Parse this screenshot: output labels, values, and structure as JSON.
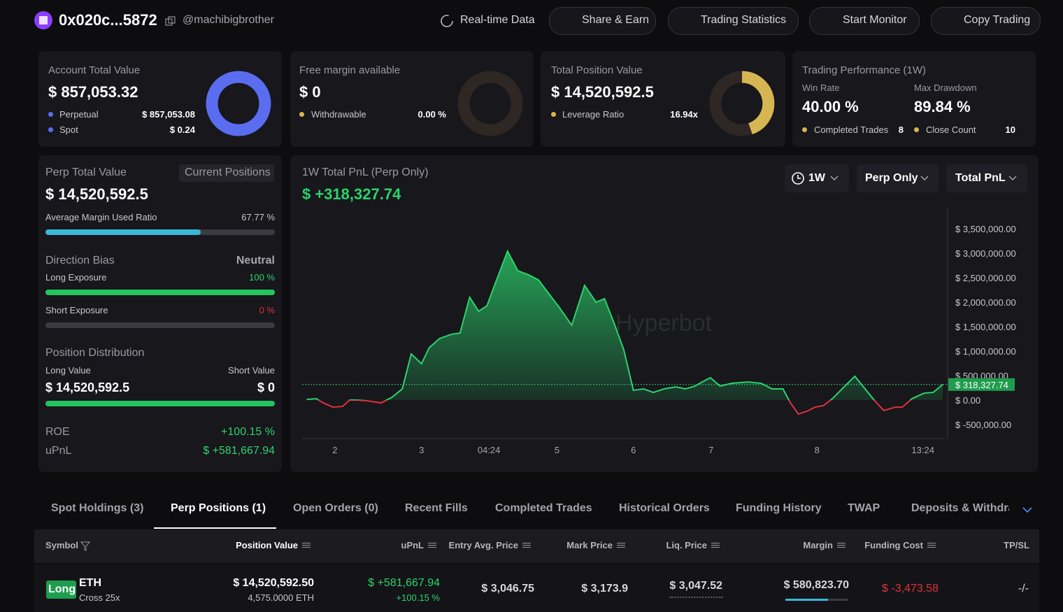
{
  "header": {
    "address": "0x020c...5872",
    "handle": "@machibigbrother",
    "buttons": [
      "Real-time Data",
      "Share & Earn",
      "Trading Statistics",
      "Start Monitor",
      "Copy Trading"
    ]
  },
  "account": {
    "title": "Account Total Value",
    "value": "$ 857,053.32",
    "perpetual_label": "Perpetual",
    "perpetual": {
      "value": 857053.08,
      "label": "$ 857,053.08"
    },
    "spot_label": "Spot",
    "spot": {
      "value": 0.24,
      "label": "$ 0.24"
    }
  },
  "free_margin": {
    "title": "Free margin available",
    "value": "$ 0",
    "withdrawable_label": "Withdrawable",
    "withdrawable": "0.00 %"
  },
  "position_value": {
    "title": "Total Position Value",
    "value": "$ 14,520,592.5",
    "leverage_label": "Leverage Ratio",
    "leverage": "16.94x"
  },
  "performance": {
    "title": "Trading Performance (1W)",
    "win_rate_label": "Win Rate",
    "win_rate": "40.00 %",
    "drawdown_label": "Max Drawdown",
    "drawdown": "89.84 %",
    "completed_label": "Completed Trades",
    "completed": "8",
    "close_label": "Close Count",
    "close": "10"
  },
  "perp": {
    "title": "Perp Total Value",
    "tab": "Current Positions",
    "value": "$ 14,520,592.5",
    "margin_label": "Average Margin Used Ratio",
    "margin_ratio": {
      "value": 67.77,
      "label": "67.77 %"
    },
    "bias_label": "Direction Bias",
    "bias": "Neutral",
    "long_label": "Long Exposure",
    "long": {
      "value": 100,
      "label": "100 %"
    },
    "short_label": "Short Exposure",
    "short": {
      "value": 0,
      "label": "0 %"
    },
    "dist_label": "Position Distribution",
    "long_value_label": "Long Value",
    "long_value": "$ 14,520,592.5",
    "short_value_label": "Short Value",
    "short_value": "$ 0",
    "roe_label": "ROE",
    "roe": "+100.15 %",
    "upnl_label": "uPnL",
    "upnl": "$ +581,667.94"
  },
  "pnl_panel": {
    "title": "1W Total PnL (Perp Only)",
    "value": "$ +318,327.74",
    "filters": [
      "1W",
      "Perp Only",
      "Total PnL"
    ],
    "watermark": "Hyperbot"
  },
  "chart_data": {
    "type": "line",
    "color": "#2bd36b",
    "negative_color": "#e0313a",
    "x": [
      0.7,
      2.2,
      3.3,
      4.8,
      6.3,
      7.4,
      8.5,
      10.1,
      12.3,
      14.0,
      15.6,
      17.0,
      18.6,
      19.8,
      21.4,
      23.2,
      24.6,
      26.1,
      27.5,
      28.8,
      29.8,
      32.0,
      33.6,
      35.3,
      36.8,
      40.1,
      42.0,
      44.0,
      45.8,
      47.1,
      48.6,
      50.1,
      51.6,
      53.2,
      54.7,
      56.4,
      58.2,
      59.7,
      61.2,
      62.3,
      63.6,
      65.1,
      66.9,
      69.5,
      71.5,
      73.2,
      74.9,
      76.0,
      77.3,
      78.6,
      79.9,
      81.2,
      82.6,
      84.1,
      86.1,
      87.6,
      89.1,
      90.6,
      92.4,
      93.5,
      95.0,
      96.9,
      98.3,
      99.8
    ],
    "values": [
      14000,
      29000,
      -57000,
      -143000,
      -129000,
      0,
      0,
      -14000,
      -57000,
      57000,
      229000,
      943000,
      743000,
      1071000,
      1257000,
      1343000,
      1371000,
      2100000,
      1814000,
      1929000,
      2286000,
      3043000,
      2643000,
      2557000,
      2457000,
      1886000,
      1529000,
      2343000,
      2000000,
      2071000,
      1571000,
      1029000,
      200000,
      229000,
      157000,
      229000,
      271000,
      229000,
      286000,
      371000,
      457000,
      286000,
      343000,
      371000,
      343000,
      229000,
      229000,
      -43000,
      -286000,
      -229000,
      -143000,
      -114000,
      29000,
      229000,
      486000,
      243000,
      0,
      -214000,
      -143000,
      -143000,
      29000,
      143000,
      157000,
      318327.74
    ],
    "current": {
      "value": 318327.74,
      "label": "$ 318,327.74"
    },
    "xlim": [
      0,
      100
    ],
    "xticks": [
      {
        "value": 5.1,
        "label": "2"
      },
      {
        "value": 18.6,
        "label": "3"
      },
      {
        "value": 29.1,
        "label": "04:24"
      },
      {
        "value": 39.7,
        "label": "5"
      },
      {
        "value": 51.6,
        "label": "6"
      },
      {
        "value": 63.7,
        "label": "7"
      },
      {
        "value": 80.2,
        "label": "8"
      },
      {
        "value": 96.7,
        "label": "13:24"
      }
    ],
    "ylim": [
      -785000,
      3930000
    ],
    "yticks": [
      {
        "value": 3500000,
        "label": "$ 3,500,000.00"
      },
      {
        "value": 3000000,
        "label": "$ 3,000,000.00"
      },
      {
        "value": 2500000,
        "label": "$ 2,500,000.00"
      },
      {
        "value": 2000000,
        "label": "$ 2,000,000.00"
      },
      {
        "value": 1500000,
        "label": "$ 1,500,000.00"
      },
      {
        "value": 1000000,
        "label": "$ 1,000,000.00"
      },
      {
        "value": 500000,
        "label": "$ 500,000.00"
      },
      {
        "value": 0,
        "label": "$ 0.00"
      },
      {
        "value": -500000,
        "label": "$ -500,000.00"
      }
    ]
  },
  "tabs": [
    "Spot Holdings (3)",
    "Perp Positions (1)",
    "Open Orders (0)",
    "Recent Fills",
    "Completed Trades",
    "Historical Orders",
    "Funding History",
    "TWAP",
    "Deposits & Withdraw"
  ],
  "table": {
    "headers": [
      "Symbol",
      "Position Value",
      "uPnL",
      "Entry Avg. Price",
      "Mark Price",
      "Liq. Price",
      "Margin",
      "Funding Cost",
      "TP/SL"
    ],
    "rows": [
      {
        "side": "Long",
        "symbol": "ETH",
        "mode": "Cross 25x",
        "position_value": "$ 14,520,592.50",
        "size": "4,575.0000 ETH",
        "upnl": "$ +581,667.94",
        "roe": "+100.15 %",
        "entry": "$ 3,046.75",
        "mark": "$ 3,173.9",
        "liq": "$ 3,047.52",
        "margin": "$ 580,823.70",
        "funding": "$ -3,473.58",
        "tpsl": "-/-"
      }
    ]
  }
}
